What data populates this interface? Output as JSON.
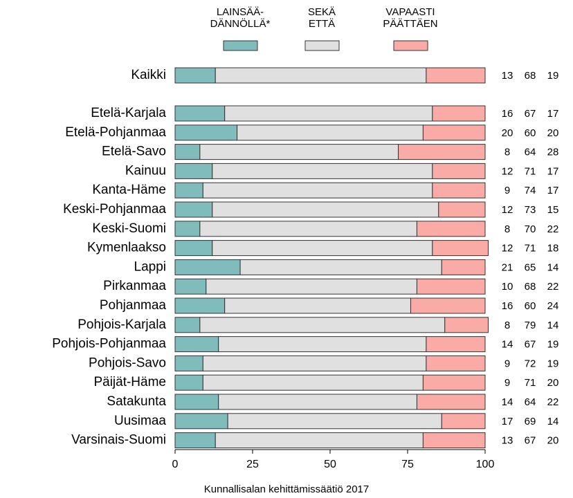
{
  "chart_data": {
    "type": "stacked_barh",
    "source": "Kunnallisalan kehittämissäätiö 2017",
    "categories": [
      "Kaikki",
      "Etelä-Karjala",
      "Etelä-Pohjanmaa",
      "Etelä-Savo",
      "Kainuu",
      "Kanta-Häme",
      "Keski-Pohjanmaa",
      "Keski-Suomi",
      "Kymenlaakso",
      "Lappi",
      "Pirkanmaa",
      "Pohjanmaa",
      "Pohjois-Karjala",
      "Pohjois-Pohjanmaa",
      "Pohjois-Savo",
      "Päijät-Häme",
      "Satakunta",
      "Uusimaa",
      "Varsinais-Suomi"
    ],
    "series": [
      {
        "name": "LAINSÄÄ-\nDÄNNÖLLÄ*",
        "color": "#80bcbb",
        "values": [
          13,
          16,
          20,
          8,
          12,
          9,
          12,
          8,
          12,
          21,
          10,
          16,
          8,
          14,
          9,
          9,
          14,
          17,
          13
        ]
      },
      {
        "name": "SEKÄ\nETTÄ",
        "color": "#e0e0e0",
        "values": [
          68,
          67,
          60,
          64,
          71,
          74,
          73,
          70,
          71,
          65,
          68,
          60,
          79,
          67,
          72,
          71,
          64,
          69,
          67
        ]
      },
      {
        "name": "VAPAASTI\nPÄÄTTÄEN",
        "color": "#faaba6",
        "values": [
          19,
          17,
          20,
          28,
          17,
          17,
          15,
          22,
          18,
          14,
          22,
          24,
          14,
          19,
          19,
          20,
          22,
          14,
          20
        ]
      }
    ],
    "xlim": [
      0,
      100
    ],
    "xticks": [
      0,
      25,
      50,
      75,
      100
    ]
  }
}
